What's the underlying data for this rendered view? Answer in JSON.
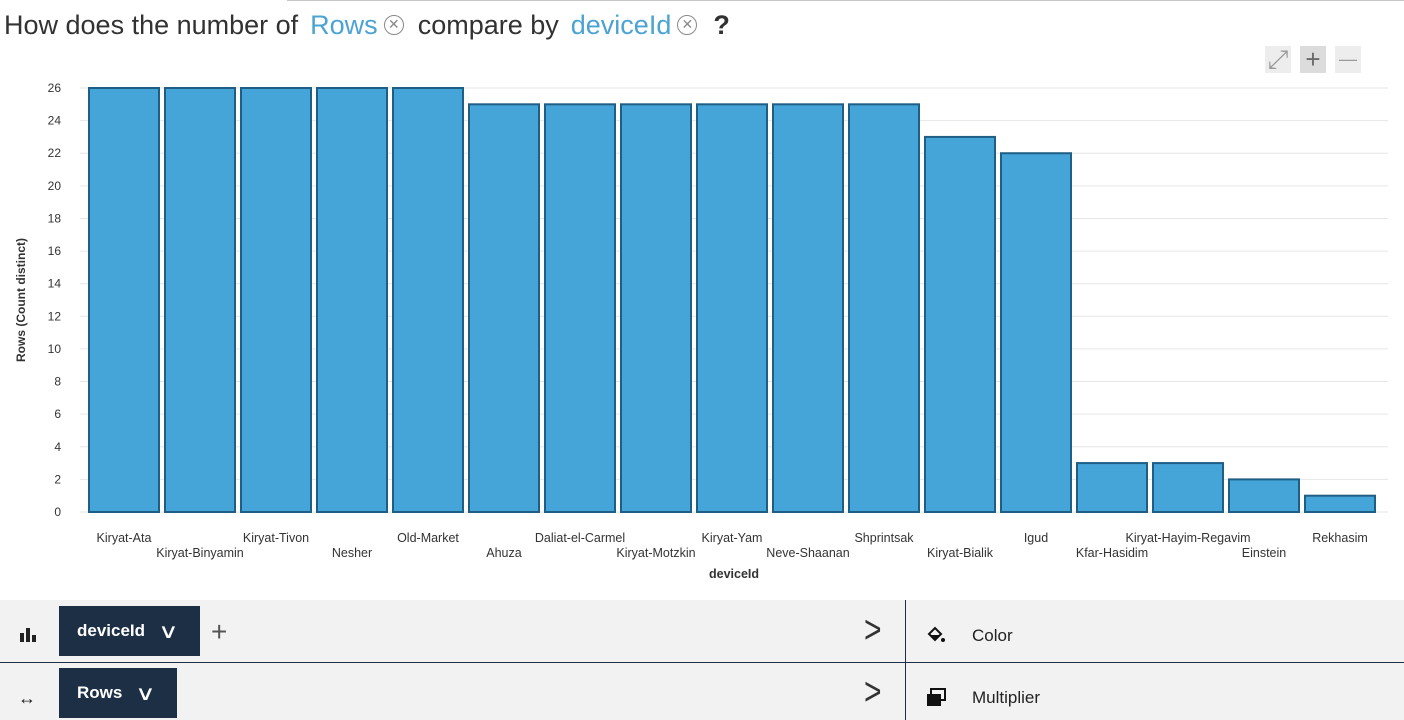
{
  "question": {
    "prefix": "How does the number of",
    "measure": "Rows",
    "middle": "compare by",
    "dimension": "deviceId",
    "suffix": "?"
  },
  "zoom_controls": {
    "fit": "⤢",
    "zoom_in": "+",
    "zoom_out": "—"
  },
  "chart_data": {
    "type": "bar",
    "categories": [
      "Kiryat-Ata",
      "Kiryat-Binyamin",
      "Kiryat-Tivon",
      "Nesher",
      "Old-Market",
      "Ahuza",
      "Daliat-el-Carmel",
      "Kiryat-Motzkin",
      "Kiryat-Yam",
      "Neve-Shaanan",
      "Shprintsak",
      "Kiryat-Bialik",
      "Igud",
      "Kfar-Hasidim",
      "Kiryat-Hayim-Regavim",
      "Einstein",
      "Rekhasim"
    ],
    "values": [
      26,
      26,
      26,
      26,
      26,
      25,
      25,
      25,
      25,
      25,
      25,
      23,
      22,
      3,
      3,
      2,
      1
    ],
    "xlabel": "deviceId",
    "ylabel": "Rows (Count distinct)",
    "ylim": [
      0,
      26
    ],
    "yticks": [
      0,
      2,
      4,
      6,
      8,
      10,
      12,
      14,
      16,
      18,
      20,
      22,
      24,
      26
    ],
    "grid": true,
    "bar_color": "#45a4d8",
    "bar_stroke": "#1f5f86"
  },
  "bottom_bar": {
    "row1": {
      "pill_label": "deviceId",
      "chevron": "∨",
      "add": "+",
      "arrow": ">"
    },
    "row2": {
      "pill_label": "Rows",
      "chevron": "∨",
      "arrow": ">",
      "swap_icon": "↔"
    },
    "right_panel": {
      "color_label": "Color",
      "multiplier_label": "Multiplier"
    }
  },
  "colors": {
    "accent": "#4ba3d3",
    "pill_bg": "#1c2f45",
    "panel_bg": "#f2f2f2"
  }
}
